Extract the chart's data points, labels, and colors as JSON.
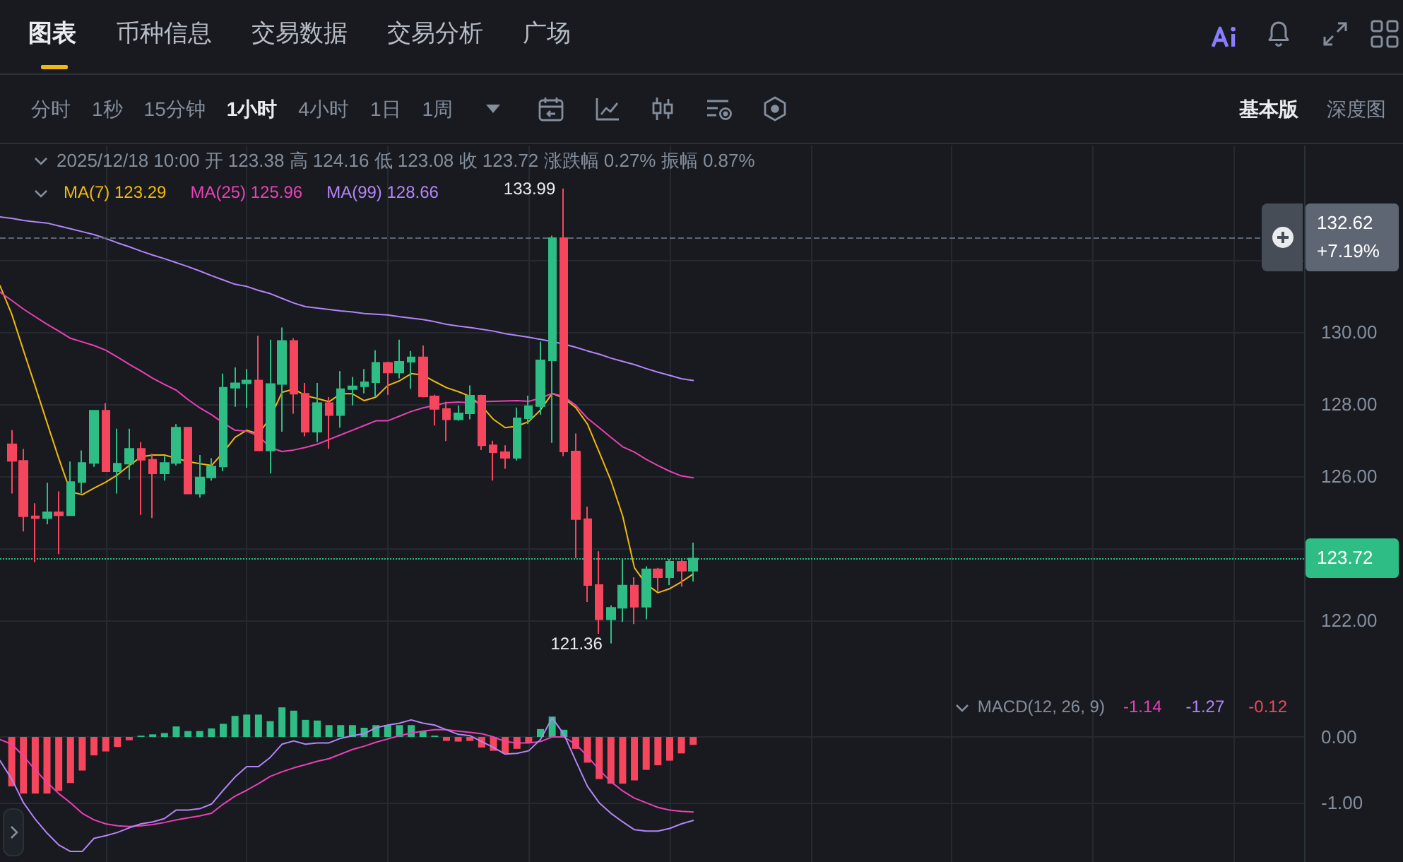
{
  "chart_data": [
    {
      "type": "candlestick",
      "title": "2025/12/18 10:00 开 123.38 高 124.16 低 123.08 收 123.72 涨跌幅 0.27% 振幅 0.87%",
      "categories": [
        null,
        null,
        null,
        null,
        null,
        null,
        null,
        null,
        null,
        null,
        null,
        null,
        null,
        null,
        null,
        null,
        null,
        null,
        null,
        null,
        null,
        null,
        null,
        null,
        null,
        null,
        null,
        null,
        null,
        null,
        null,
        null,
        null,
        null,
        null,
        null,
        null,
        null,
        null,
        null,
        null,
        null,
        null,
        null,
        null,
        null,
        null,
        null,
        null,
        null,
        null,
        null,
        null,
        null,
        null,
        null,
        null,
        null,
        null,
        null,
        null,
        null,
        null,
        null,
        null,
        null,
        null,
        null,
        null,
        null,
        null,
        null,
        null,
        null,
        null,
        null,
        null,
        null,
        null,
        null,
        null,
        null,
        null,
        null,
        null,
        null,
        null,
        null,
        null,
        null,
        null,
        null,
        null,
        null,
        null,
        null,
        null,
        null,
        null,
        null,
        null,
        null,
        null,
        null,
        null,
        null,
        null,
        null,
        null,
        null,
        null,
        null
      ],
      "ohlc": [
        null,
        [
          126.89,
          127.28,
          125.52,
          126.43
        ],
        [
          126.43,
          126.76,
          124.47,
          124.89
        ],
        [
          124.89,
          125.25,
          123.62,
          124.84
        ],
        [
          124.84,
          125.82,
          124.67,
          125.0
        ],
        [
          125.0,
          125.58,
          123.84,
          124.92
        ],
        [
          124.92,
          126.41,
          124.9,
          125.84
        ],
        [
          125.84,
          126.72,
          125.52,
          126.37
        ],
        [
          126.37,
          127.84,
          126.26,
          127.82
        ],
        [
          127.82,
          128.03,
          126.12,
          126.14
        ],
        [
          126.14,
          127.32,
          125.52,
          126.35
        ],
        [
          126.35,
          127.32,
          125.91,
          126.76
        ],
        [
          126.76,
          126.95,
          124.93,
          126.46
        ],
        [
          126.46,
          126.63,
          124.84,
          126.08
        ],
        [
          126.08,
          126.56,
          125.88,
          126.37
        ],
        [
          126.37,
          127.45,
          126.3,
          127.35
        ],
        [
          127.35,
          127.37,
          125.5,
          125.52
        ],
        [
          125.52,
          126.59,
          125.41,
          125.97
        ],
        [
          125.97,
          126.5,
          125.88,
          126.27
        ],
        [
          126.27,
          128.85,
          126.14,
          128.46
        ],
        [
          128.46,
          129.02,
          127.93,
          128.58
        ],
        [
          128.58,
          128.98,
          127.9,
          128.66
        ],
        [
          128.66,
          129.9,
          126.7,
          126.72
        ],
        [
          126.72,
          129.79,
          126.08,
          128.56
        ],
        [
          128.56,
          130.13,
          127.24,
          129.76
        ],
        [
          129.76,
          129.83,
          127.74,
          128.29
        ],
        [
          128.29,
          128.59,
          127.11,
          127.24
        ],
        [
          127.24,
          128.59,
          126.95,
          128.03
        ],
        [
          128.03,
          128.2,
          126.76,
          127.7
        ],
        [
          127.7,
          128.92,
          127.35,
          128.42
        ],
        [
          128.42,
          128.76,
          127.97,
          128.5
        ],
        [
          128.5,
          128.98,
          128.3,
          128.61
        ],
        [
          128.61,
          129.5,
          128.2,
          129.15
        ],
        [
          129.15,
          129.18,
          128.26,
          128.88
        ],
        [
          128.88,
          129.79,
          128.72,
          129.18
        ],
        [
          129.18,
          129.48,
          128.43,
          129.3
        ],
        [
          129.3,
          129.63,
          128.2,
          128.22
        ],
        [
          128.22,
          128.26,
          127.41,
          127.87
        ],
        [
          127.87,
          128.07,
          126.98,
          127.58
        ],
        [
          127.58,
          127.97,
          127.54,
          127.75
        ],
        [
          127.75,
          128.52,
          127.58,
          128.24
        ],
        [
          128.24,
          128.26,
          126.73,
          126.86
        ],
        [
          126.86,
          126.99,
          125.88,
          126.67
        ],
        [
          126.67,
          126.86,
          126.21,
          126.51
        ],
        [
          126.51,
          127.91,
          126.44,
          127.61
        ],
        [
          127.61,
          128.24,
          127.45,
          127.95
        ],
        [
          127.95,
          129.74,
          127.71,
          129.22
        ],
        [
          129.22,
          132.68,
          126.93,
          132.61
        ],
        [
          132.61,
          133.99,
          126.56,
          126.69
        ],
        [
          126.69,
          127.19,
          123.73,
          124.81
        ],
        [
          124.81,
          125.16,
          122.51,
          122.98
        ],
        [
          122.98,
          123.92,
          121.63,
          122.03
        ],
        [
          122.03,
          122.42,
          121.36,
          122.35
        ],
        [
          122.35,
          123.69,
          121.96,
          122.97
        ],
        [
          122.97,
          123.2,
          121.9,
          122.38
        ],
        [
          122.38,
          123.5,
          122.03,
          123.42
        ],
        [
          123.42,
          123.46,
          122.81,
          123.2
        ],
        [
          123.2,
          123.71,
          122.98,
          123.63
        ],
        [
          123.63,
          123.71,
          122.94,
          123.38
        ],
        [
          123.38,
          124.16,
          123.08,
          123.72
        ],
        null,
        null,
        null,
        null,
        null,
        null,
        null,
        null,
        null,
        null,
        null,
        null,
        null,
        null,
        null,
        null,
        null,
        null,
        null,
        null,
        null,
        null,
        null,
        null,
        null,
        null,
        null,
        null,
        null,
        null,
        null,
        null,
        null,
        null,
        null,
        null,
        null,
        null,
        null,
        null,
        null,
        null,
        null,
        null,
        null,
        null,
        null,
        null,
        null,
        null,
        null,
        null
      ],
      "colors": [
        null,
        "#f6465d",
        "#f6465d",
        "#f6465d",
        "#2ebd85",
        "#f6465d",
        "#2ebd85",
        "#2ebd85",
        "#2ebd85",
        "#f6465d",
        "#2ebd85",
        "#2ebd85",
        "#f6465d",
        "#f6465d",
        "#2ebd85",
        "#2ebd85",
        "#f6465d",
        "#2ebd85",
        "#2ebd85",
        "#2ebd85",
        "#2ebd85",
        "#2ebd85",
        "#f6465d",
        "#2ebd85",
        "#2ebd85",
        "#f6465d",
        "#f6465d",
        "#2ebd85",
        "#f6465d",
        "#2ebd85",
        "#2ebd85",
        "#2ebd85",
        "#2ebd85",
        "#f6465d",
        "#2ebd85",
        "#2ebd85",
        "#f6465d",
        "#f6465d",
        "#f6465d",
        "#2ebd85",
        "#2ebd85",
        "#f6465d",
        "#f6465d",
        "#f6465d",
        "#2ebd85",
        "#2ebd85",
        "#2ebd85",
        "#2ebd85",
        "#f6465d",
        "#f6465d",
        "#f6465d",
        "#f6465d",
        "#2ebd85",
        "#2ebd85",
        "#f6465d",
        "#2ebd85",
        "#f6465d",
        "#2ebd85",
        "#f6465d",
        "#2ebd85",
        null,
        null,
        null,
        null,
        null,
        null,
        null,
        null,
        null,
        null,
        null,
        null,
        null,
        null,
        null,
        null,
        null,
        null,
        null,
        null,
        null,
        null,
        null,
        null,
        null,
        null,
        null,
        null,
        null,
        null,
        null,
        null,
        null,
        null,
        null,
        null,
        null,
        null,
        null,
        null,
        null,
        null,
        null,
        null,
        null,
        null,
        null,
        null,
        null,
        null,
        null,
        null
      ],
      "series": [
        {
          "name": "MA(7) 123.29",
          "type": "line",
          "color": "#f0b90b",
          "values": [
            131.29,
            130.5,
            129.49,
            128.5,
            127.49,
            126.5,
            125.57,
            125.49,
            125.67,
            125.84,
            126.04,
            126.3,
            126.54,
            126.59,
            126.59,
            126.5,
            126.41,
            126.35,
            126.3,
            126.66,
            127.08,
            127.28,
            127.18,
            127.62,
            128.33,
            128.42,
            128.24,
            128.16,
            128.07,
            128.29,
            128.29,
            128.1,
            128.2,
            128.52,
            128.65,
            128.85,
            128.81,
            128.63,
            128.46,
            128.35,
            128.22,
            127.95,
            127.58,
            127.35,
            127.39,
            127.52,
            127.84,
            128.3,
            128.17,
            127.91,
            127.45,
            126.67,
            125.88,
            124.9,
            123.46,
            123.01,
            122.77,
            122.88,
            123.07,
            123.29,
            null,
            null,
            null,
            null,
            null,
            null,
            null,
            null,
            null,
            null,
            null,
            null,
            null,
            null,
            null,
            null,
            null,
            null,
            null,
            null,
            null,
            null,
            null,
            null,
            null,
            null,
            null,
            null,
            null,
            null,
            null,
            null,
            null,
            null,
            null,
            null,
            null,
            null,
            null,
            null,
            null,
            null,
            null,
            null,
            null,
            null,
            null,
            null,
            null,
            null,
            null,
            null
          ]
        },
        {
          "name": "MA(25) 125.96",
          "type": "line",
          "color": "#eb40b5",
          "values": [
            131.11,
            130.88,
            130.64,
            130.43,
            130.22,
            130.03,
            129.83,
            129.73,
            129.63,
            129.5,
            129.31,
            129.11,
            128.92,
            128.72,
            128.55,
            128.39,
            128.13,
            127.9,
            127.71,
            127.48,
            127.28,
            127.25,
            127.12,
            126.8,
            126.69,
            126.73,
            126.8,
            126.89,
            127.02,
            127.15,
            127.28,
            127.41,
            127.54,
            127.54,
            127.67,
            127.8,
            127.9,
            127.97,
            128.04,
            128.06,
            128.04,
            128.07,
            128.08,
            128.09,
            128.1,
            128.08,
            128.17,
            128.3,
            128.21,
            127.97,
            127.61,
            127.35,
            127.08,
            126.82,
            126.67,
            126.47,
            126.3,
            126.14,
            126.01,
            125.96,
            null,
            null,
            null,
            null,
            null,
            null,
            null,
            null,
            null,
            null,
            null,
            null,
            null,
            null,
            null,
            null,
            null,
            null,
            null,
            null,
            null,
            null,
            null,
            null,
            null,
            null,
            null,
            null,
            null,
            null,
            null,
            null,
            null,
            null,
            null,
            null,
            null,
            null,
            null,
            null,
            null,
            null,
            null,
            null,
            null,
            null,
            null,
            null,
            null,
            null,
            null,
            null
          ]
        },
        {
          "name": "MA(99) 128.66",
          "type": "line",
          "color": "#b385f8",
          "values": [
            133.2,
            133.16,
            133.1,
            133.06,
            133.03,
            132.95,
            132.87,
            132.79,
            132.71,
            132.6,
            132.48,
            132.37,
            132.25,
            132.14,
            132.04,
            131.93,
            131.82,
            131.7,
            131.57,
            131.45,
            131.33,
            131.27,
            131.16,
            131.07,
            130.94,
            130.81,
            130.71,
            130.67,
            130.63,
            130.59,
            130.56,
            130.52,
            130.5,
            130.48,
            130.43,
            130.39,
            130.35,
            130.29,
            130.22,
            130.17,
            130.13,
            130.08,
            130.03,
            129.96,
            129.91,
            129.86,
            129.8,
            129.74,
            129.67,
            129.58,
            129.48,
            129.39,
            129.28,
            129.19,
            129.1,
            128.99,
            128.89,
            128.8,
            128.71,
            128.66,
            null,
            null,
            null,
            null,
            null,
            null,
            null,
            null,
            null,
            null,
            null,
            null,
            null,
            null,
            null,
            null,
            null,
            null,
            null,
            null,
            null,
            null,
            null,
            null,
            null,
            null,
            null,
            null,
            null,
            null,
            null,
            null,
            null,
            null,
            null,
            null,
            null,
            null,
            null,
            null,
            null,
            null,
            null,
            null,
            null,
            null,
            null,
            null,
            null,
            null,
            null,
            null
          ]
        }
      ],
      "ylim": [
        120.08,
        135.18
      ],
      "yticks": [
        {
          "value": 122,
          "label": "122.00"
        },
        {
          "value": 124,
          "label": null
        },
        {
          "value": 126,
          "label": "126.00"
        },
        {
          "value": 128,
          "label": "128.00"
        },
        {
          "value": 130,
          "label": "130.00"
        },
        {
          "value": 132,
          "label": null
        }
      ],
      "grid": true,
      "legend": "top left",
      "tick_labels": "y",
      "ref_lines": [
        {
          "axis": "y",
          "value": 132.62,
          "color": "#5e6673",
          "line_style": "dashed"
        },
        {
          "axis": "y",
          "value": 123.72,
          "color": "#2ebd85",
          "line_style": "dotted"
        }
      ],
      "annotations": [
        "132.62\n+7.19%",
        "123.72",
        "133.99",
        "121.36",
        "图表",
        "币种信息",
        "交易数据",
        "交易分析",
        "广场",
        "分时",
        "1秒",
        "15分钟",
        "1小时",
        "4小时",
        "1日",
        "1周",
        "基本版",
        "深度图"
      ]
    },
    {
      "type": "bar",
      "legend_title": "MACD(12, 26, 9)",
      "categories": [
        null,
        null,
        null,
        null,
        null,
        null,
        null,
        null,
        null,
        null,
        null,
        null,
        null,
        null,
        null,
        null,
        null,
        null,
        null,
        null,
        null,
        null,
        null,
        null,
        null,
        null,
        null,
        null,
        null,
        null,
        null,
        null,
        null,
        null,
        null,
        null,
        null,
        null,
        null,
        null,
        null,
        null,
        null,
        null,
        null,
        null,
        null,
        null,
        null,
        null,
        null,
        null,
        null,
        null,
        null,
        null,
        null,
        null,
        null,
        null,
        null,
        null,
        null,
        null,
        null,
        null,
        null,
        null,
        null,
        null,
        null,
        null,
        null,
        null,
        null,
        null,
        null,
        null,
        null,
        null,
        null,
        null,
        null,
        null,
        null,
        null,
        null,
        null,
        null,
        null,
        null,
        null,
        null,
        null,
        null,
        null,
        null,
        null,
        null,
        null,
        null,
        null,
        null,
        null,
        null,
        null,
        null,
        null,
        null,
        null,
        null,
        null
      ],
      "series": [
        {
          "name": "-1.14",
          "type": "line",
          "color": "#eb40b5",
          "values": [
            -0.04,
            -0.11,
            -0.29,
            -0.5,
            -0.69,
            -0.86,
            -1.0,
            -1.16,
            -1.26,
            -1.32,
            -1.35,
            -1.36,
            -1.35,
            -1.33,
            -1.3,
            -1.26,
            -1.23,
            -1.2,
            -1.16,
            -1.02,
            -0.9,
            -0.81,
            -0.71,
            -0.6,
            -0.53,
            -0.47,
            -0.42,
            -0.37,
            -0.33,
            -0.26,
            -0.19,
            -0.14,
            -0.08,
            -0.03,
            0.02,
            0.06,
            0.09,
            0.11,
            0.11,
            0.09,
            0.07,
            0.05,
            0.0,
            -0.07,
            -0.09,
            -0.09,
            -0.07,
            0.0,
            0.0,
            -0.11,
            -0.29,
            -0.5,
            -0.68,
            -0.82,
            -0.93,
            -1.0,
            -1.07,
            -1.11,
            -1.13,
            -1.14,
            null,
            null,
            null,
            null,
            null,
            null,
            null,
            null,
            null,
            null,
            null,
            null,
            null,
            null,
            null,
            null,
            null,
            null,
            null,
            null,
            null,
            null,
            null,
            null,
            null,
            null,
            null,
            null,
            null,
            null,
            null,
            null,
            null,
            null,
            null,
            null,
            null,
            null,
            null,
            null,
            null,
            null,
            null,
            null,
            null,
            null,
            null,
            null,
            null,
            null,
            null,
            null
          ]
        },
        {
          "name": "-1.27",
          "type": "line",
          "color": "#b385f8",
          "values": [
            -0.36,
            -0.64,
            -1.0,
            -1.25,
            -1.46,
            -1.64,
            -1.74,
            -1.74,
            -1.54,
            -1.5,
            -1.45,
            -1.38,
            -1.32,
            -1.29,
            -1.24,
            -1.11,
            -1.11,
            -1.09,
            -1.02,
            -0.81,
            -0.61,
            -0.45,
            -0.45,
            -0.31,
            -0.11,
            -0.06,
            -0.11,
            -0.09,
            -0.09,
            -0.02,
            0.02,
            0.05,
            0.14,
            0.18,
            0.21,
            0.26,
            0.21,
            0.18,
            0.11,
            0.04,
            0.02,
            -0.07,
            -0.16,
            -0.26,
            -0.25,
            -0.21,
            -0.04,
            0.29,
            0.04,
            -0.36,
            -0.75,
            -1.0,
            -1.16,
            -1.29,
            -1.41,
            -1.43,
            -1.43,
            -1.39,
            -1.32,
            -1.27,
            null,
            null,
            null,
            null,
            null,
            null,
            null,
            null,
            null,
            null,
            null,
            null,
            null,
            null,
            null,
            null,
            null,
            null,
            null,
            null,
            null,
            null,
            null,
            null,
            null,
            null,
            null,
            null,
            null,
            null,
            null,
            null,
            null,
            null,
            null,
            null,
            null,
            null,
            null,
            null,
            null,
            null,
            null,
            null,
            null,
            null,
            null,
            null,
            null,
            null,
            null,
            null
          ]
        },
        {
          "name": "-0.12",
          "colors": [
            null,
            "#f6465d",
            "#f6465d",
            "#f6465d",
            "#f6465d",
            "#f6465d",
            "#f6465d",
            "#f6465d",
            "#f6465d",
            "#f6465d",
            "#f6465d",
            "#f6465d",
            "#2ebd85",
            "#2ebd85",
            "#2ebd85",
            "#2ebd85",
            "#2ebd85",
            "#2ebd85",
            "#2ebd85",
            "#2ebd85",
            "#2ebd85",
            "#2ebd85",
            "#2ebd85",
            "#2ebd85",
            "#2ebd85",
            "#2ebd85",
            "#2ebd85",
            "#2ebd85",
            "#2ebd85",
            "#2ebd85",
            "#2ebd85",
            "#2ebd85",
            "#2ebd85",
            "#2ebd85",
            "#2ebd85",
            "#2ebd85",
            "#2ebd85",
            "#2ebd85",
            "#f6465d",
            "#f6465d",
            "#f6465d",
            "#f6465d",
            "#f6465d",
            "#f6465d",
            "#f6465d",
            "#f6465d",
            "#2ebd85",
            "#2ebd85",
            "#2ebd85",
            "#f6465d",
            "#f6465d",
            "#f6465d",
            "#f6465d",
            "#f6465d",
            "#f6465d",
            "#f6465d",
            "#f6465d",
            "#f6465d",
            "#f6465d",
            "#f6465d",
            null,
            null,
            null,
            null,
            null,
            null,
            null,
            null,
            null,
            null,
            null,
            null,
            null,
            null,
            null,
            null,
            null,
            null,
            null,
            null,
            null,
            null,
            null,
            null,
            null,
            null,
            null,
            null,
            null,
            null,
            null,
            null,
            null,
            null,
            null,
            null,
            null,
            null,
            null,
            null,
            null,
            null,
            null,
            null,
            null,
            null,
            null,
            null,
            null,
            null,
            null,
            null
          ],
          "values": [
            null,
            -0.75,
            -0.86,
            -0.86,
            -0.86,
            -0.82,
            -0.7,
            -0.51,
            -0.28,
            -0.22,
            -0.15,
            -0.05,
            0.02,
            0.04,
            0.06,
            0.16,
            0.09,
            0.09,
            0.13,
            0.2,
            0.32,
            0.34,
            0.34,
            0.24,
            0.45,
            0.4,
            0.26,
            0.25,
            0.18,
            0.18,
            0.18,
            0.14,
            0.18,
            0.18,
            0.18,
            0.18,
            0.09,
            0.02,
            -0.06,
            -0.07,
            -0.06,
            -0.16,
            -0.21,
            -0.25,
            -0.18,
            -0.09,
            0.12,
            0.31,
            0.11,
            -0.18,
            -0.39,
            -0.64,
            -0.71,
            -0.71,
            -0.66,
            -0.5,
            -0.43,
            -0.36,
            -0.25,
            -0.12,
            null,
            null,
            null,
            null,
            null,
            null,
            null,
            null,
            null,
            null,
            null,
            null,
            null,
            null,
            null,
            null,
            null,
            null,
            null,
            null,
            null,
            null,
            null,
            null,
            null,
            null,
            null,
            null,
            null,
            null,
            null,
            null,
            null,
            null,
            null,
            null,
            null,
            null,
            null,
            null,
            null,
            null,
            null,
            null,
            null,
            null,
            null,
            null,
            null,
            null,
            null,
            null
          ]
        }
      ],
      "ylim": [
        -1.9,
        0.72
      ],
      "yticks": [
        {
          "value": -1,
          "label": "-1.00"
        },
        {
          "value": 0,
          "label": "0.00"
        }
      ],
      "grid": true,
      "legend": "top right",
      "tick_labels": "y"
    }
  ]
}
